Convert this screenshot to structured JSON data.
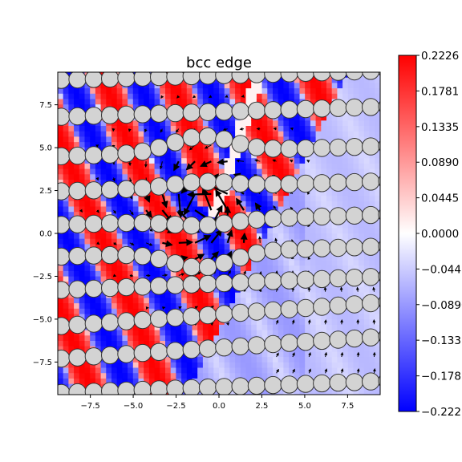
{
  "chart_data": {
    "type": "heatmap",
    "title": "bcc edge",
    "xlabel": "",
    "ylabel": "",
    "xlim": [
      -9.4,
      9.4
    ],
    "ylim": [
      -9.4,
      9.4
    ],
    "x_ticks": [
      -7.5,
      -5.0,
      -2.5,
      0.0,
      2.5,
      5.0,
      7.5
    ],
    "x_tick_labels": [
      "−7.5",
      "−5.0",
      "−2.5",
      "0.0",
      "2.5",
      "5.0",
      "7.5"
    ],
    "y_ticks": [
      7.5,
      5.0,
      2.5,
      0.0,
      -2.5,
      -5.0,
      -7.5
    ],
    "y_tick_labels": [
      "7.5",
      "5.0",
      "2.5",
      "0.0",
      "−2.5",
      "−5.0",
      "−7.5"
    ],
    "colormap": "bwr",
    "colors": {
      "low": "#0000ff",
      "mid": "#ffffff",
      "high": "#ff0000",
      "atom_fill": "#d3d3d3",
      "atom_edge": "#333333",
      "arrow": "#000000"
    },
    "colorbar": {
      "vmin": -0.2226,
      "vmax": 0.2226,
      "ticks": [
        0.2226,
        0.1781,
        0.1335,
        0.089,
        0.0445,
        0.0,
        -0.0445,
        -0.089,
        -0.1335,
        -0.1781,
        -0.2226
      ],
      "tick_labels": [
        "0.2226",
        "0.1781",
        "0.1335",
        "0.0890",
        "0.0445",
        "0.0000",
        "−0.0445",
        "−0.0890",
        "−0.1335",
        "−0.1781",
        "−0.2226"
      ]
    },
    "atom_rows": [
      {
        "row": 0,
        "y_left": 8.95,
        "y_right": 9.5,
        "x_start": -9.2,
        "x_end": 9.8,
        "spacing": 0.95
      },
      {
        "row": 1,
        "y_left": 6.8,
        "y_right": 7.4,
        "x_start": -9.2,
        "x_end": 9.8,
        "spacing": 0.95
      },
      {
        "row": 2,
        "y_left": 4.5,
        "y_right": 5.1,
        "x_start": -9.2,
        "x_end": 9.8,
        "spacing": 0.95
      },
      {
        "row": 3,
        "y_left": 2.45,
        "y_right": 3.05,
        "x_start": -9.2,
        "x_end": 9.8,
        "spacing": 0.95
      },
      {
        "row": 4,
        "y_left": 0.5,
        "y_right": 1.1,
        "x_start": -9.2,
        "x_end": 9.8,
        "spacing": 0.95
      },
      {
        "row": 5,
        "y_left": -1.35,
        "y_right": -0.75,
        "x_start": -9.2,
        "x_end": 9.8,
        "spacing": 0.95
      },
      {
        "row": 6,
        "y_left": -3.3,
        "y_right": -2.5,
        "x_start": -9.2,
        "x_end": 9.8,
        "spacing": 0.95
      },
      {
        "row": 7,
        "y_left": -5.4,
        "y_right": -4.0,
        "x_start": -9.2,
        "x_end": 9.8,
        "spacing": 0.95
      },
      {
        "row": 8,
        "y_left": -7.3,
        "y_right": -6.0,
        "x_start": -9.2,
        "x_end": 9.8,
        "spacing": 0.95
      },
      {
        "row": 9,
        "y_left": -9.3,
        "y_right": -8.6,
        "x_start": -9.2,
        "x_end": 9.8,
        "spacing": 0.95
      }
    ],
    "atom_radius": 0.5,
    "dislocation_core": [
      -1.0,
      1.5
    ]
  }
}
